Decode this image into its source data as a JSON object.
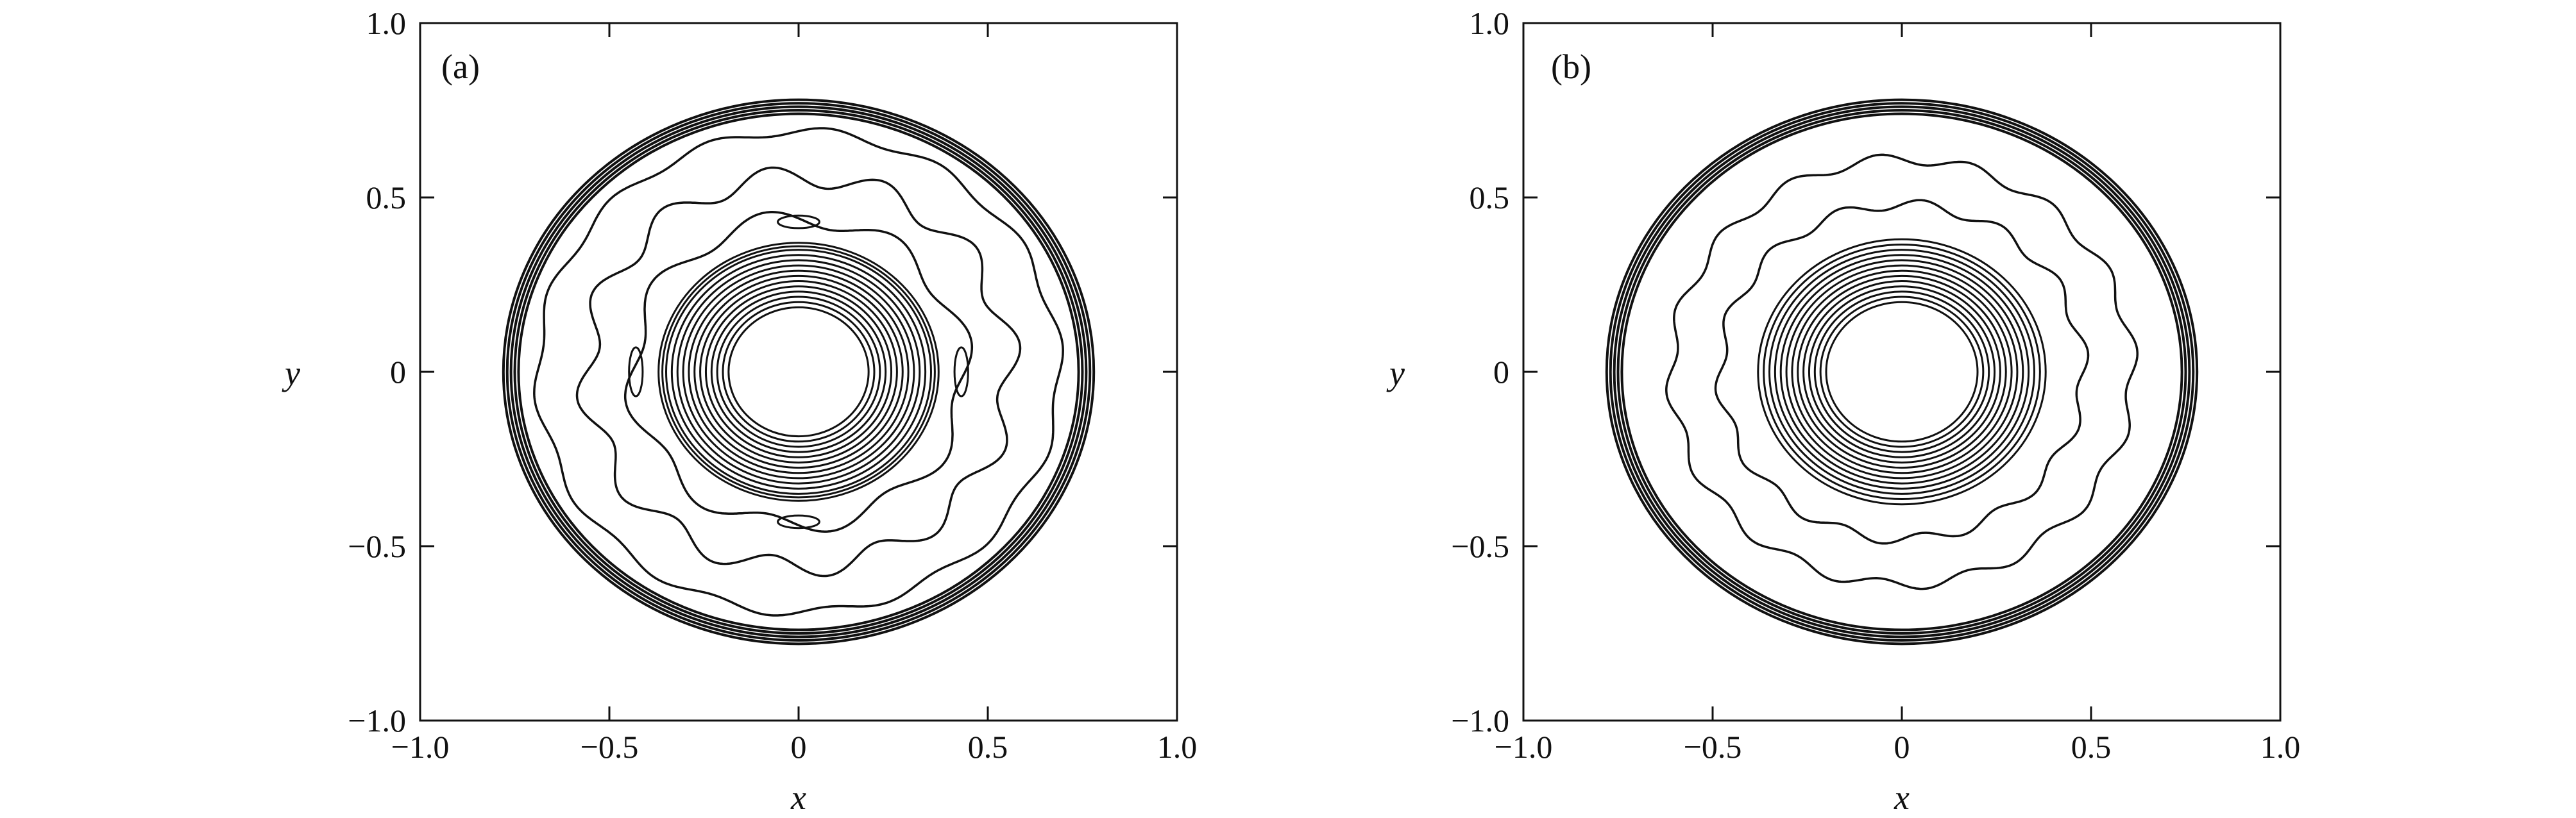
{
  "chart_data": [
    {
      "type": "contour",
      "panel_label": "(a)",
      "xlabel": "x",
      "ylabel": "y",
      "xlim": [
        -1.0,
        1.0
      ],
      "ylim": [
        -1.0,
        1.0
      ],
      "xticks": [
        -1.0,
        -0.5,
        0,
        0.5,
        1.0
      ],
      "yticks": [
        -1.0,
        -0.5,
        0,
        0.5,
        1.0
      ],
      "xtick_labels": [
        "−1.0",
        "−0.5",
        "0",
        "0.5",
        "1.0"
      ],
      "ytick_labels": [
        "−1.0",
        "−0.5",
        "0",
        "0.5",
        "1.0"
      ],
      "contours": {
        "inner_ring_radii": [
          0.185,
          0.2,
          0.215,
          0.23,
          0.245,
          0.26,
          0.275,
          0.29,
          0.305,
          0.32,
          0.335,
          0.35,
          0.36,
          0.37
        ],
        "wavy_levels": [
          {
            "radius": 0.44,
            "wave_amplitude": 0.025,
            "wave_number": 8
          },
          {
            "radius": 0.56,
            "wave_amplitude": 0.03,
            "wave_number": 12
          },
          {
            "radius": 0.69,
            "wave_amplitude": 0.012,
            "wave_number": 14
          }
        ],
        "outer_ring_radii": [
          0.74,
          0.75,
          0.76,
          0.77,
          0.78
        ],
        "islands": [
          {
            "x": 0.0,
            "y": 0.43,
            "rx": 0.055,
            "ry": 0.018
          },
          {
            "x": 0.0,
            "y": -0.43,
            "rx": 0.055,
            "ry": 0.018
          },
          {
            "x": -0.43,
            "y": 0.0,
            "rx": 0.018,
            "ry": 0.07
          },
          {
            "x": 0.43,
            "y": 0.0,
            "rx": 0.018,
            "ry": 0.07
          }
        ]
      }
    },
    {
      "type": "contour",
      "panel_label": "(b)",
      "xlabel": "x",
      "ylabel": "y",
      "xlim": [
        -1.0,
        1.0
      ],
      "ylim": [
        -1.0,
        1.0
      ],
      "xticks": [
        -1.0,
        -0.5,
        0,
        0.5,
        1.0
      ],
      "yticks": [
        -1.0,
        -0.5,
        0,
        0.5,
        1.0
      ],
      "xtick_labels": [
        "−1.0",
        "−0.5",
        "0",
        "0.5",
        "1.0"
      ],
      "ytick_labels": [
        "−1.0",
        "−0.5",
        "0",
        "0.5",
        "1.0"
      ],
      "contours": {
        "inner_ring_radii": [
          0.2,
          0.215,
          0.23,
          0.245,
          0.26,
          0.275,
          0.29,
          0.305,
          0.32,
          0.335,
          0.35,
          0.365,
          0.38
        ],
        "wavy_levels": [
          {
            "radius": 0.48,
            "wave_amplitude": 0.015,
            "wave_number": 14
          },
          {
            "radius": 0.61,
            "wave_amplitude": 0.015,
            "wave_number": 16
          }
        ],
        "outer_ring_radii": [
          0.74,
          0.75,
          0.76,
          0.77,
          0.78
        ],
        "islands": []
      }
    }
  ]
}
